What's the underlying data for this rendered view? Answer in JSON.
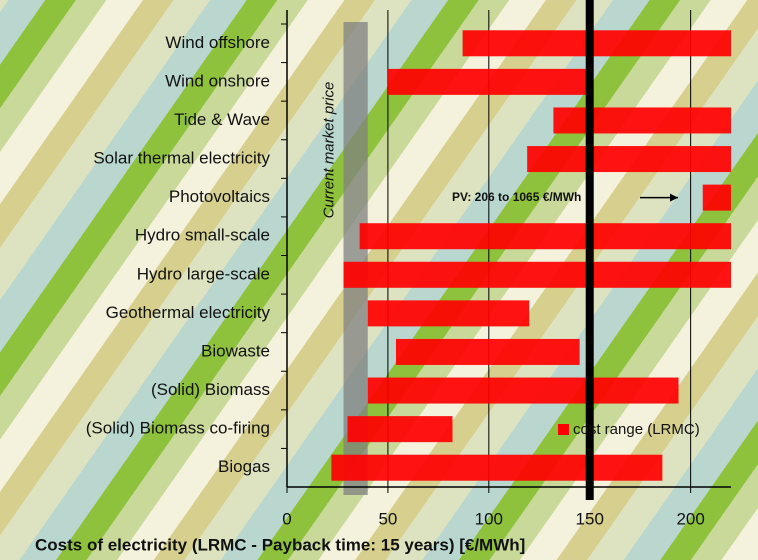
{
  "chart_data": {
    "type": "range_bar",
    "categories": [
      "Wind offshore",
      "Wind onshore",
      "Tide & Wave",
      "Solar thermal electricity",
      "Photovoltaics",
      "Hydro small-scale",
      "Hydro large-scale",
      "Geothermal electricity",
      "Biowaste",
      "(Solid) Biomass",
      "(Solid) Biomass co-firing",
      "Biogas"
    ],
    "series": [
      {
        "name": "cost range (LRMC)",
        "color": "#ff0000",
        "low": [
          87,
          50,
          132,
          119,
          206,
          36,
          28,
          40,
          54,
          40,
          30,
          22
        ],
        "high": [
          220,
          150,
          220,
          220,
          220,
          220,
          220,
          120,
          145,
          194,
          82,
          186
        ]
      }
    ],
    "xlabel": "Costs of electricity (LRMC - Payback time: 15 years) [€/MWh]",
    "xlim": [
      0,
      220
    ],
    "xticks": [
      0,
      50,
      100,
      150,
      200
    ],
    "grid": true,
    "legend": "lower right",
    "market_price": {
      "label": "Current market price",
      "range": [
        28,
        40
      ],
      "color": "#808080"
    },
    "highlight_x": 150,
    "annotation": "PV: 206 to 1065 €/MWh"
  }
}
